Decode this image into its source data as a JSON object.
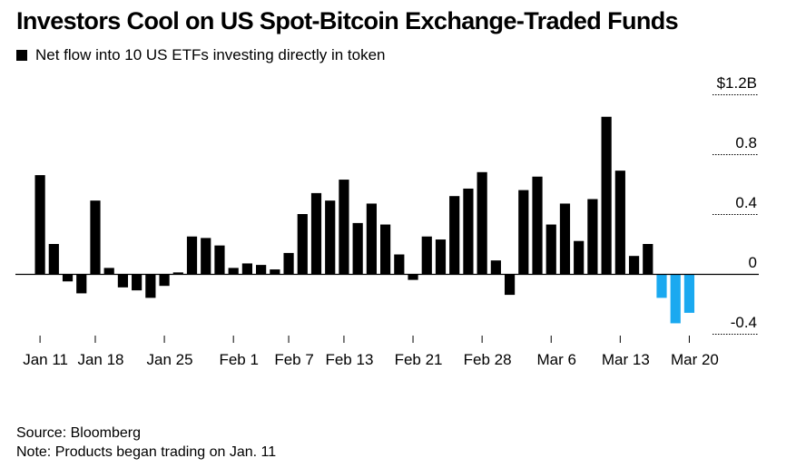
{
  "title": "Investors Cool on US Spot-Bitcoin Exchange-Traded Funds",
  "legend_label": "Net flow into 10 US ETFs investing directly in token",
  "source": "Source: Bloomberg",
  "note": "Note: Products began trading on Jan. 11",
  "colors": {
    "positive": "#000000",
    "negative": "#1aa9f0",
    "zero_line": "#000000",
    "grid": "#000000"
  },
  "chart_data": {
    "type": "bar",
    "title": "Investors Cool on US Spot-Bitcoin Exchange-Traded Funds",
    "unit": "USD billions",
    "ylim": [
      -0.4,
      1.2
    ],
    "y_ticks": [
      {
        "value": 1.2,
        "label": "$1.2B"
      },
      {
        "value": 0.8,
        "label": "0.8"
      },
      {
        "value": 0.4,
        "label": "0.4"
      },
      {
        "value": 0,
        "label": "0"
      },
      {
        "value": -0.4,
        "label": "-0.4"
      }
    ],
    "x_tick_labels": [
      {
        "index": 0,
        "label": "Jan 11"
      },
      {
        "index": 4,
        "label": "Jan 18"
      },
      {
        "index": 9,
        "label": "Jan 25"
      },
      {
        "index": 14,
        "label": "Feb 1"
      },
      {
        "index": 18,
        "label": "Feb 7"
      },
      {
        "index": 22,
        "label": "Feb 13"
      },
      {
        "index": 27,
        "label": "Feb 21"
      },
      {
        "index": 32,
        "label": "Feb 28"
      },
      {
        "index": 37,
        "label": "Mar 6"
      },
      {
        "index": 42,
        "label": "Mar 13"
      },
      {
        "index": 47,
        "label": "Mar 20"
      }
    ],
    "series": [
      {
        "values": [
          0.66,
          0.2,
          -0.05,
          -0.13,
          0.49,
          0.04,
          -0.09,
          -0.11,
          -0.16,
          -0.08,
          0.01,
          0.25,
          0.24,
          0.19,
          0.04,
          0.07,
          0.06,
          0.03,
          0.14,
          0.4,
          0.54,
          0.49,
          0.63,
          0.34,
          0.47,
          0.33,
          0.13,
          -0.04,
          0.25,
          0.23,
          0.52,
          0.57,
          0.68,
          0.09,
          -0.14,
          0.56,
          0.65,
          0.33,
          0.47,
          0.22,
          0.5,
          1.05,
          0.69,
          0.12,
          0.2,
          -0.16,
          -0.33,
          -0.26
        ]
      }
    ]
  }
}
